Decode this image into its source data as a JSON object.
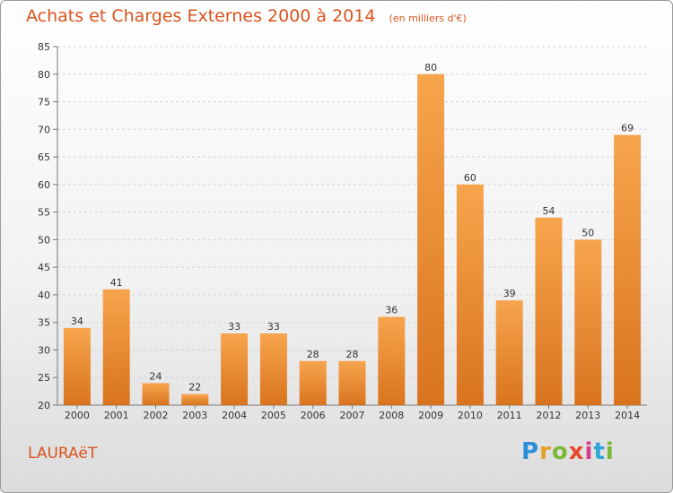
{
  "header": {
    "title": "Achats et Charges Externes 2000 à 2014",
    "unit": "(en milliers d'€)"
  },
  "footer": {
    "commune": "LAURAëT",
    "brand": "Proxiti",
    "brand_colors": [
      "#2a8fd6",
      "#e6a02a",
      "#7ab833",
      "#e64a2a",
      "#d83a8a",
      "#2aa7d6",
      "#7ab833"
    ]
  },
  "colors": {
    "bar_light": "#f7a54d",
    "bar_dark": "#d9741e",
    "title": "#d9531e"
  },
  "chart_data": {
    "type": "bar",
    "title": "Achats et Charges Externes 2000 à 2014",
    "ylabel": "",
    "xlabel": "",
    "categories": [
      "2000",
      "2001",
      "2002",
      "2003",
      "2004",
      "2005",
      "2006",
      "2007",
      "2008",
      "2009",
      "2010",
      "2011",
      "2012",
      "2013",
      "2014"
    ],
    "values": [
      34,
      41,
      24,
      22,
      33,
      33,
      28,
      28,
      36,
      80,
      60,
      39,
      54,
      50,
      69
    ],
    "ylim": [
      20,
      85
    ],
    "yticks": [
      20,
      25,
      30,
      35,
      40,
      45,
      50,
      55,
      60,
      65,
      70,
      75,
      80,
      85
    ],
    "grid": true
  }
}
